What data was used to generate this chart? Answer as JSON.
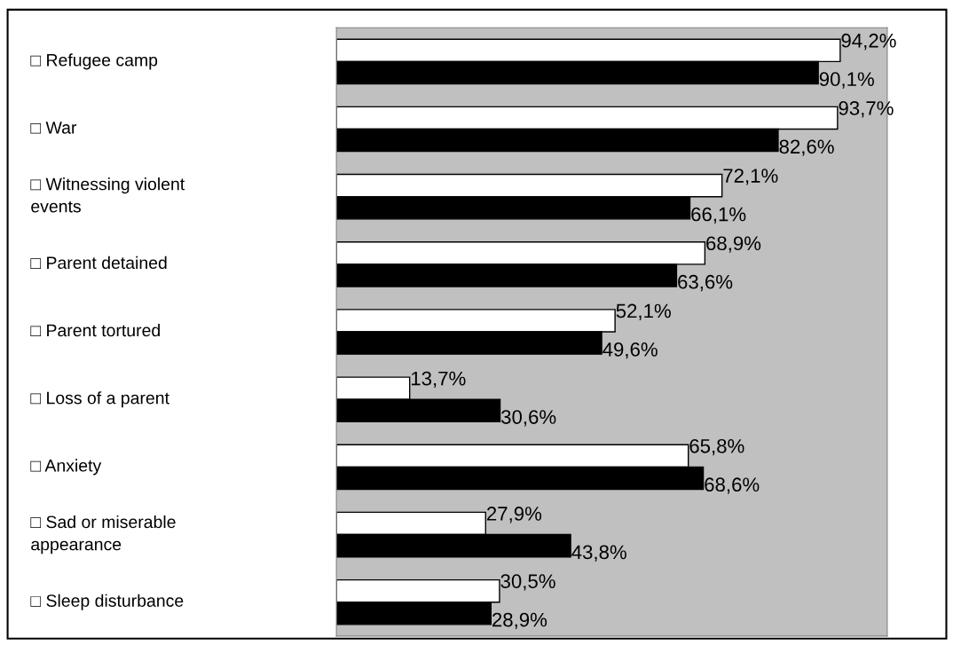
{
  "chart_data": {
    "type": "bar",
    "orientation": "horizontal",
    "categories": [
      "□ Refugee camp",
      "□ War",
      "□ Witnessing violent\nevents",
      "□ Parent detained",
      "□ Parent tortured",
      "□ Loss of a parent",
      "□ Anxiety",
      "□ Sad or miserable\nappearance",
      "□ Sleep disturbance"
    ],
    "xlim": [
      0,
      103
    ],
    "series": [
      {
        "color": "#ffffff",
        "values": [
          94.2,
          93.7,
          72.1,
          68.9,
          52.1,
          13.7,
          65.8,
          27.9,
          30.5
        ],
        "value_labels": [
          "94,2%",
          "93,7%",
          "72,1%",
          "68,9%",
          "52,1%",
          "13,7%",
          "65,8%",
          "27,9%",
          "30,5%"
        ]
      },
      {
        "color": "#000000",
        "values": [
          90.1,
          82.6,
          66.1,
          63.6,
          49.6,
          30.6,
          68.6,
          43.8,
          28.9
        ],
        "value_labels": [
          "90,1%",
          "82,6%",
          "66,1%",
          "63,6%",
          "49,6%",
          "30,6%",
          "68,6%",
          "43,8%",
          "28,9%"
        ]
      }
    ],
    "tick_labels": false
  }
}
